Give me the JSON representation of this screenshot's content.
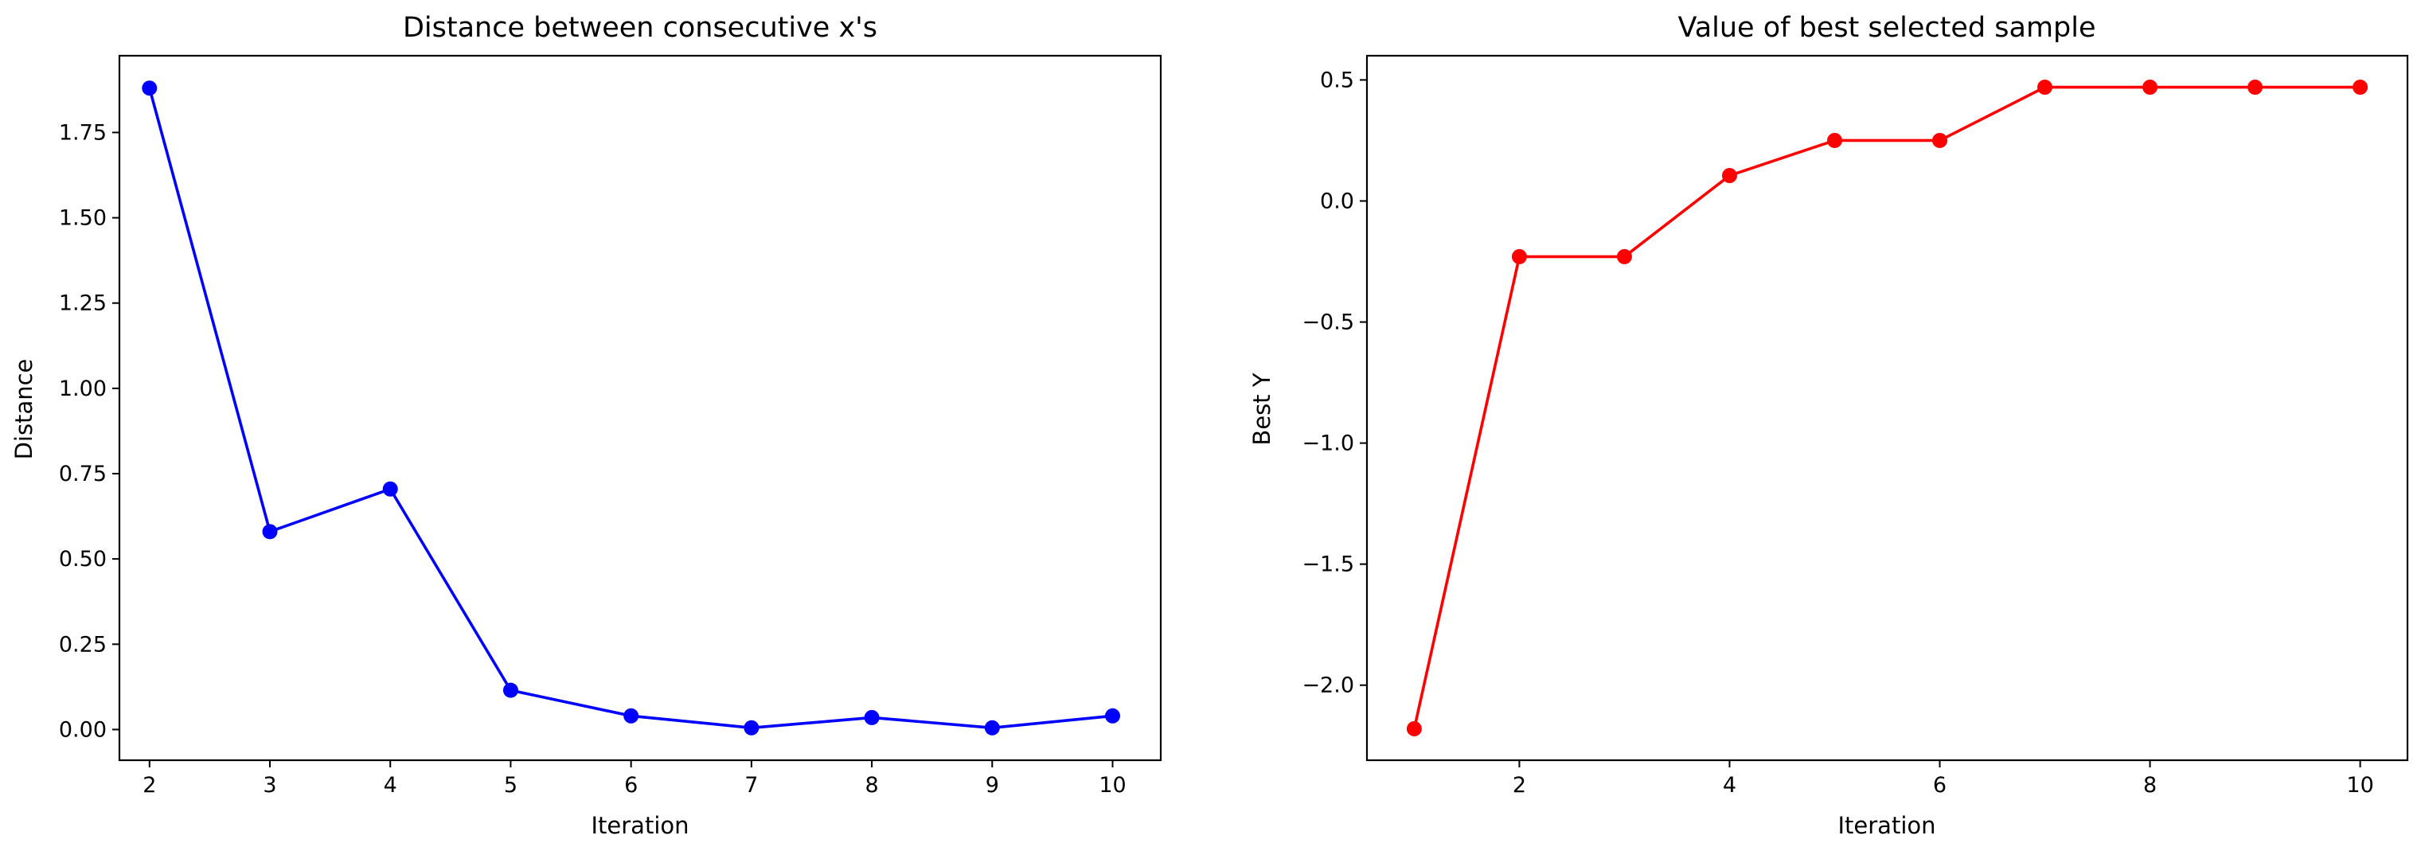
{
  "chart_data": [
    {
      "type": "line",
      "title": "Distance between consecutive x's",
      "xlabel": "Iteration",
      "ylabel": "Distance",
      "x": [
        2,
        3,
        4,
        5,
        6,
        7,
        8,
        9,
        10
      ],
      "series": [
        {
          "color": "#0000ff",
          "marker": "circle",
          "values": [
            1.88,
            0.58,
            0.705,
            0.115,
            0.04,
            0.005,
            0.035,
            0.005,
            0.04
          ]
        }
      ],
      "xlim": [
        1.75,
        10.4
      ],
      "ylim": [
        -0.09,
        1.975
      ],
      "xticks": [
        2,
        3,
        4,
        5,
        6,
        7,
        8,
        9,
        10
      ],
      "yticks": [
        "0.00",
        "0.25",
        "0.50",
        "0.75",
        "1.00",
        "1.25",
        "1.50",
        "1.75"
      ],
      "grid": false
    },
    {
      "type": "line",
      "title": "Value of best selected sample",
      "xlabel": "Iteration",
      "ylabel": "Best Y",
      "x": [
        1,
        2,
        3,
        4,
        5,
        6,
        7,
        8,
        9,
        10
      ],
      "series": [
        {
          "color": "#ff0000",
          "marker": "circle",
          "values": [
            -2.18,
            -0.23,
            -0.23,
            0.105,
            0.25,
            0.25,
            0.47,
            0.47,
            0.47,
            0.47
          ]
        }
      ],
      "xlim": [
        0.55,
        10.45
      ],
      "ylim": [
        -2.31,
        0.6
      ],
      "xticks": [
        2,
        4,
        6,
        8,
        10
      ],
      "yticks": [
        "−2.0",
        "−1.5",
        "−1.0",
        "−0.5",
        "0.0",
        "0.5"
      ],
      "grid": false
    }
  ]
}
